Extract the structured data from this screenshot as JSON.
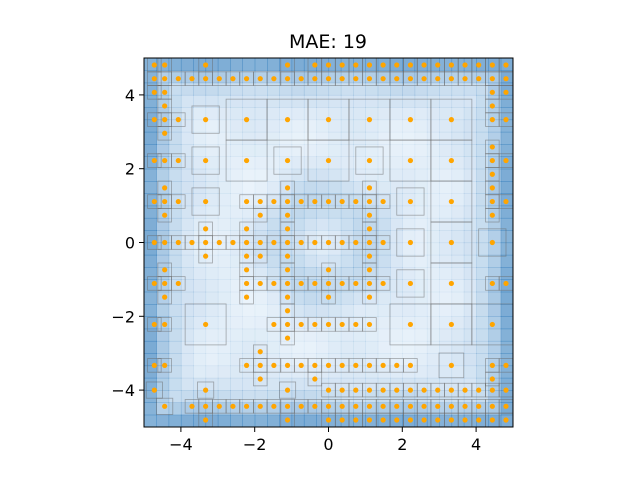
{
  "chart_data": {
    "type": "scatter",
    "title": "MAE: 19",
    "xlabel": "",
    "ylabel": "",
    "xlim": [
      -5,
      5
    ],
    "ylim": [
      -5,
      5
    ],
    "xticks": [
      -4,
      -2,
      0,
      2,
      4
    ],
    "yticks": [
      -4,
      -2,
      0,
      2,
      4
    ],
    "xtick_labels": [
      "−4",
      "−2",
      "0",
      "2",
      "4"
    ],
    "ytick_labels": [
      "−4",
      "−2",
      "0",
      "2",
      "4"
    ],
    "grid": false,
    "legend": "none",
    "background": "adaptive-mesh error heatmap (blue, darker = higher error; darkest near the borders and the centre)",
    "point_color": "#FFA500",
    "heat_color": "#2171B5",
    "cell_edge_color": "#666666",
    "points": [
      [
        -4.72,
        -4.0
      ],
      [
        -4.72,
        -3.33
      ],
      [
        -4.72,
        -2.22
      ],
      [
        -4.72,
        -1.11
      ],
      [
        -4.72,
        0.0
      ],
      [
        -4.72,
        1.11
      ],
      [
        -4.72,
        2.22
      ],
      [
        -4.72,
        3.33
      ],
      [
        -4.72,
        4.07
      ],
      [
        -4.72,
        4.44
      ],
      [
        -4.72,
        4.81
      ],
      [
        -4.44,
        -4.44
      ],
      [
        -4.44,
        -3.33
      ],
      [
        -4.44,
        -2.22
      ],
      [
        -4.44,
        -1.48
      ],
      [
        -4.44,
        -1.11
      ],
      [
        -4.44,
        -0.74
      ],
      [
        -4.44,
        0.0
      ],
      [
        -4.44,
        0.74
      ],
      [
        -4.44,
        1.11
      ],
      [
        -4.44,
        1.48
      ],
      [
        -4.44,
        2.22
      ],
      [
        -4.44,
        2.96
      ],
      [
        -4.44,
        3.33
      ],
      [
        -4.44,
        3.7
      ],
      [
        -4.44,
        4.07
      ],
      [
        -4.44,
        4.44
      ],
      [
        -4.44,
        4.81
      ],
      [
        -4.07,
        -1.11
      ],
      [
        -4.07,
        0.0
      ],
      [
        -4.07,
        1.11
      ],
      [
        -4.07,
        2.22
      ],
      [
        -4.07,
        3.33
      ],
      [
        -4.07,
        4.44
      ],
      [
        -3.7,
        -4.44
      ],
      [
        -3.7,
        0.0
      ],
      [
        -3.7,
        4.44
      ],
      [
        -3.33,
        -4.81
      ],
      [
        -3.33,
        -4.44
      ],
      [
        -3.33,
        -4.0
      ],
      [
        -3.33,
        -2.22
      ],
      [
        -3.33,
        -0.37
      ],
      [
        -3.33,
        0.0
      ],
      [
        -3.33,
        0.37
      ],
      [
        -3.33,
        1.11
      ],
      [
        -3.33,
        2.22
      ],
      [
        -3.33,
        3.33
      ],
      [
        -3.33,
        4.44
      ],
      [
        -3.33,
        4.81
      ],
      [
        -2.96,
        -4.44
      ],
      [
        -2.96,
        0.0
      ],
      [
        -2.96,
        4.44
      ],
      [
        -2.59,
        -4.44
      ],
      [
        -2.59,
        0.0
      ],
      [
        -2.59,
        4.44
      ],
      [
        -2.22,
        -4.44
      ],
      [
        -2.22,
        -3.33
      ],
      [
        -2.22,
        -1.48
      ],
      [
        -2.22,
        -1.11
      ],
      [
        -2.22,
        -0.74
      ],
      [
        -2.22,
        -0.37
      ],
      [
        -2.22,
        0.0
      ],
      [
        -2.22,
        0.37
      ],
      [
        -2.22,
        1.11
      ],
      [
        -2.22,
        2.22
      ],
      [
        -2.22,
        3.33
      ],
      [
        -2.22,
        4.44
      ],
      [
        -1.85,
        -4.44
      ],
      [
        -1.85,
        -3.7
      ],
      [
        -1.85,
        -3.33
      ],
      [
        -1.85,
        -2.96
      ],
      [
        -1.85,
        -1.11
      ],
      [
        -1.85,
        -0.37
      ],
      [
        -1.85,
        0.0
      ],
      [
        -1.85,
        0.74
      ],
      [
        -1.85,
        1.11
      ],
      [
        -1.85,
        4.44
      ],
      [
        -1.48,
        -4.44
      ],
      [
        -1.48,
        -3.33
      ],
      [
        -1.48,
        -2.22
      ],
      [
        -1.48,
        -1.11
      ],
      [
        -1.48,
        0.0
      ],
      [
        -1.48,
        1.11
      ],
      [
        -1.48,
        4.44
      ],
      [
        -1.11,
        -4.81
      ],
      [
        -1.11,
        -4.44
      ],
      [
        -1.11,
        -4.0
      ],
      [
        -1.11,
        -3.33
      ],
      [
        -1.11,
        -2.59
      ],
      [
        -1.11,
        -2.22
      ],
      [
        -1.11,
        -1.85
      ],
      [
        -1.11,
        -1.48
      ],
      [
        -1.11,
        -1.11
      ],
      [
        -1.11,
        -0.74
      ],
      [
        -1.11,
        -0.37
      ],
      [
        -1.11,
        0.0
      ],
      [
        -1.11,
        0.37
      ],
      [
        -1.11,
        0.74
      ],
      [
        -1.11,
        1.11
      ],
      [
        -1.11,
        1.48
      ],
      [
        -1.11,
        2.22
      ],
      [
        -1.11,
        3.33
      ],
      [
        -1.11,
        4.44
      ],
      [
        -1.11,
        4.81
      ],
      [
        -0.74,
        -4.44
      ],
      [
        -0.74,
        -3.33
      ],
      [
        -0.74,
        -2.22
      ],
      [
        -0.74,
        -1.11
      ],
      [
        -0.74,
        0.0
      ],
      [
        -0.74,
        1.11
      ],
      [
        -0.74,
        4.44
      ],
      [
        -0.37,
        -4.44
      ],
      [
        -0.37,
        -3.7
      ],
      [
        -0.37,
        -3.33
      ],
      [
        -0.37,
        -2.22
      ],
      [
        -0.37,
        -1.11
      ],
      [
        -0.37,
        0.0
      ],
      [
        -0.37,
        1.11
      ],
      [
        -0.37,
        4.44
      ],
      [
        -0.37,
        4.81
      ],
      [
        0.0,
        -4.81
      ],
      [
        0.0,
        -4.44
      ],
      [
        0.0,
        -4.0
      ],
      [
        0.0,
        -3.33
      ],
      [
        0.0,
        -2.22
      ],
      [
        0.0,
        -1.48
      ],
      [
        0.0,
        -1.11
      ],
      [
        0.0,
        -0.74
      ],
      [
        0.0,
        0.0
      ],
      [
        0.0,
        1.11
      ],
      [
        0.0,
        2.22
      ],
      [
        0.0,
        3.33
      ],
      [
        0.0,
        4.44
      ],
      [
        0.0,
        4.81
      ],
      [
        0.37,
        -4.81
      ],
      [
        0.37,
        -4.44
      ],
      [
        0.37,
        -4.0
      ],
      [
        0.37,
        -3.33
      ],
      [
        0.37,
        -2.22
      ],
      [
        0.37,
        -1.11
      ],
      [
        0.37,
        0.0
      ],
      [
        0.37,
        1.11
      ],
      [
        0.37,
        4.44
      ],
      [
        0.37,
        4.81
      ],
      [
        0.74,
        -4.81
      ],
      [
        0.74,
        -4.44
      ],
      [
        0.74,
        -4.0
      ],
      [
        0.74,
        -3.33
      ],
      [
        0.74,
        -2.22
      ],
      [
        0.74,
        -1.11
      ],
      [
        0.74,
        0.0
      ],
      [
        0.74,
        1.11
      ],
      [
        0.74,
        4.44
      ],
      [
        0.74,
        4.81
      ],
      [
        1.11,
        -4.81
      ],
      [
        1.11,
        -4.44
      ],
      [
        1.11,
        -4.0
      ],
      [
        1.11,
        -3.33
      ],
      [
        1.11,
        -2.22
      ],
      [
        1.11,
        -1.48
      ],
      [
        1.11,
        -1.11
      ],
      [
        1.11,
        -0.74
      ],
      [
        1.11,
        -0.37
      ],
      [
        1.11,
        0.0
      ],
      [
        1.11,
        0.37
      ],
      [
        1.11,
        0.74
      ],
      [
        1.11,
        1.11
      ],
      [
        1.11,
        1.48
      ],
      [
        1.11,
        2.22
      ],
      [
        1.11,
        3.33
      ],
      [
        1.11,
        4.44
      ],
      [
        1.11,
        4.81
      ],
      [
        1.48,
        -4.81
      ],
      [
        1.48,
        -4.44
      ],
      [
        1.48,
        -4.0
      ],
      [
        1.48,
        -3.33
      ],
      [
        1.48,
        -1.11
      ],
      [
        1.48,
        0.0
      ],
      [
        1.48,
        1.11
      ],
      [
        1.48,
        4.44
      ],
      [
        1.48,
        4.81
      ],
      [
        1.85,
        -4.81
      ],
      [
        1.85,
        -4.44
      ],
      [
        1.85,
        -4.0
      ],
      [
        1.85,
        -3.33
      ],
      [
        1.85,
        4.44
      ],
      [
        1.85,
        4.81
      ],
      [
        2.22,
        -4.81
      ],
      [
        2.22,
        -4.44
      ],
      [
        2.22,
        -4.0
      ],
      [
        2.22,
        -3.33
      ],
      [
        2.22,
        -2.22
      ],
      [
        2.22,
        -1.11
      ],
      [
        2.22,
        0.0
      ],
      [
        2.22,
        1.11
      ],
      [
        2.22,
        2.22
      ],
      [
        2.22,
        3.33
      ],
      [
        2.22,
        4.44
      ],
      [
        2.22,
        4.81
      ],
      [
        2.59,
        -4.81
      ],
      [
        2.59,
        -4.44
      ],
      [
        2.59,
        -4.0
      ],
      [
        2.59,
        4.44
      ],
      [
        2.59,
        4.81
      ],
      [
        2.96,
        -4.81
      ],
      [
        2.96,
        -4.44
      ],
      [
        2.96,
        -4.0
      ],
      [
        2.96,
        4.44
      ],
      [
        2.96,
        4.81
      ],
      [
        3.33,
        -4.81
      ],
      [
        3.33,
        -4.44
      ],
      [
        3.33,
        -4.0
      ],
      [
        3.33,
        -3.33
      ],
      [
        3.33,
        -2.22
      ],
      [
        3.33,
        -1.11
      ],
      [
        3.33,
        0.0
      ],
      [
        3.33,
        1.11
      ],
      [
        3.33,
        2.22
      ],
      [
        3.33,
        3.33
      ],
      [
        3.33,
        4.44
      ],
      [
        3.33,
        4.81
      ],
      [
        3.7,
        -4.81
      ],
      [
        3.7,
        -4.44
      ],
      [
        3.7,
        -4.0
      ],
      [
        3.7,
        4.44
      ],
      [
        3.7,
        4.81
      ],
      [
        4.07,
        -4.81
      ],
      [
        4.07,
        -4.44
      ],
      [
        4.07,
        -4.0
      ],
      [
        4.07,
        4.44
      ],
      [
        4.07,
        4.81
      ],
      [
        4.44,
        -4.81
      ],
      [
        4.44,
        -4.44
      ],
      [
        4.44,
        -4.0
      ],
      [
        4.44,
        -3.7
      ],
      [
        4.44,
        -3.33
      ],
      [
        4.44,
        -2.22
      ],
      [
        4.44,
        -1.11
      ],
      [
        4.44,
        0.0
      ],
      [
        4.44,
        0.74
      ],
      [
        4.44,
        1.11
      ],
      [
        4.44,
        1.48
      ],
      [
        4.44,
        1.85
      ],
      [
        4.44,
        2.22
      ],
      [
        4.44,
        2.59
      ],
      [
        4.44,
        3.33
      ],
      [
        4.44,
        3.7
      ],
      [
        4.44,
        4.07
      ],
      [
        4.44,
        4.44
      ],
      [
        4.44,
        4.81
      ],
      [
        4.81,
        -4.81
      ],
      [
        4.81,
        -4.44
      ],
      [
        4.81,
        -4.0
      ],
      [
        4.81,
        -3.33
      ],
      [
        4.81,
        -1.11
      ],
      [
        4.81,
        1.11
      ],
      [
        4.81,
        2.22
      ],
      [
        4.81,
        3.33
      ],
      [
        4.81,
        4.07
      ],
      [
        4.81,
        4.44
      ],
      [
        4.81,
        4.81
      ]
    ]
  }
}
